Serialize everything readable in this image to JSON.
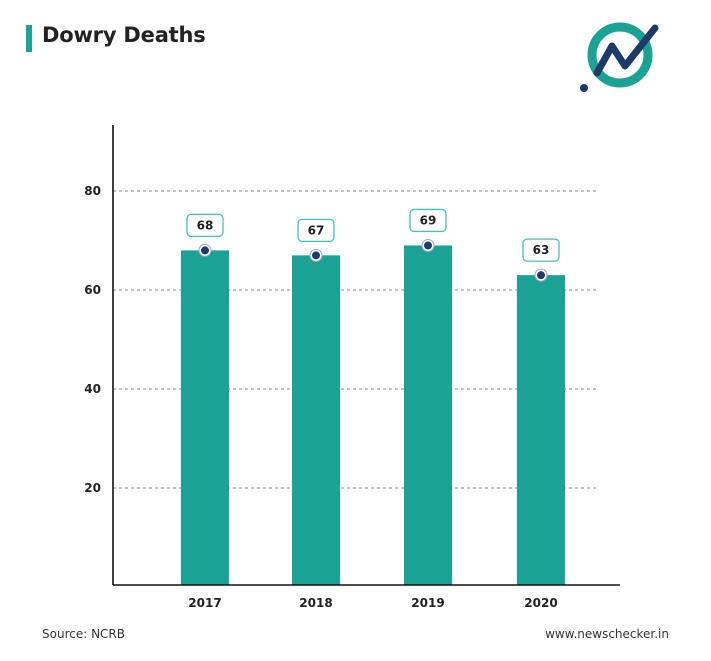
{
  "title": "Dowry Deaths",
  "source": "Source: NCRB",
  "website": "www.newschecker.in",
  "colors": {
    "bar": "#1aa394",
    "accent": "#1aa394",
    "dot": "#1f3a68",
    "logo_ring": "#1aa394",
    "logo_line": "#1f3a68"
  },
  "chart_data": {
    "type": "bar",
    "title": "Dowry Deaths",
    "categories": [
      "2017",
      "2018",
      "2019",
      "2020"
    ],
    "values": [
      68,
      67,
      69,
      63
    ],
    "data_labels": [
      "68",
      "67",
      "69",
      "63"
    ],
    "ylim": [
      0,
      90
    ],
    "yticks": [
      20,
      40,
      60,
      80
    ],
    "grid": true,
    "xlabel": "",
    "ylabel": ""
  }
}
